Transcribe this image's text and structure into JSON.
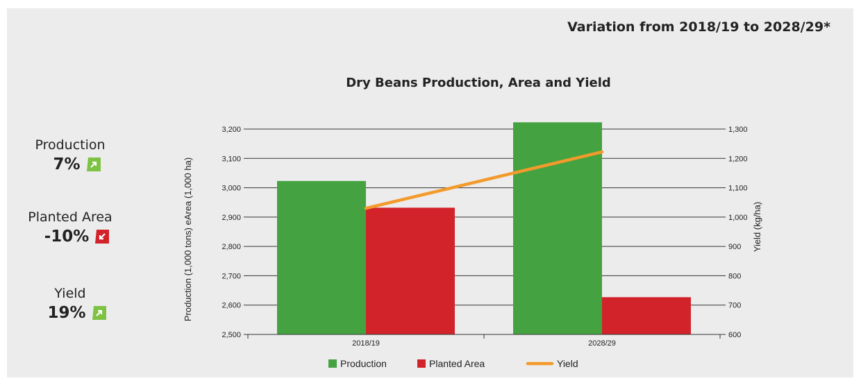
{
  "header": {
    "variation_title": "Variation from 2018/19 to 2028/29*"
  },
  "stats": [
    {
      "name": "Production",
      "value": "7%",
      "direction": "up",
      "icon": "arrow-up-right-icon",
      "color": "#7dc242"
    },
    {
      "name": "Planted Area",
      "value": "-10%",
      "direction": "down",
      "icon": "arrow-down-left-icon",
      "color": "#d2232a"
    },
    {
      "name": "Yield",
      "value": "19%",
      "direction": "up",
      "icon": "arrow-up-right-icon",
      "color": "#7dc242"
    }
  ],
  "chart_data": {
    "type": "bar",
    "title": "Dry Beans Production, Area and Yield",
    "categories": [
      "2018/19",
      "2028/29"
    ],
    "ylabel_left": "Production (1,000 tons) eArea (1,000 ha)",
    "ylabel_right": "Yield (kg/ha)",
    "ylim_left": [
      2500,
      3200
    ],
    "ylim_right": [
      600,
      1300
    ],
    "yticks_left": [
      "2,500",
      "2,600",
      "2,700",
      "2,800",
      "2,900",
      "3,000",
      "3,100",
      "3,200"
    ],
    "yticks_right": [
      "600",
      "700",
      "800",
      "900",
      "1,000",
      "1,100",
      "1,200",
      "1,300"
    ],
    "series": [
      {
        "name": "Production",
        "type": "bar",
        "axis": "left",
        "color": "#44a340",
        "values": [
          3023,
          3223
        ]
      },
      {
        "name": "Planted Area",
        "type": "bar",
        "axis": "left",
        "color": "#d2232a",
        "values": [
          2932,
          2627
        ]
      },
      {
        "name": "Yield",
        "type": "line",
        "axis": "right",
        "color": "#f39a2c",
        "values": [
          1030,
          1222
        ]
      }
    ],
    "grid": true,
    "legend": "bottom"
  }
}
